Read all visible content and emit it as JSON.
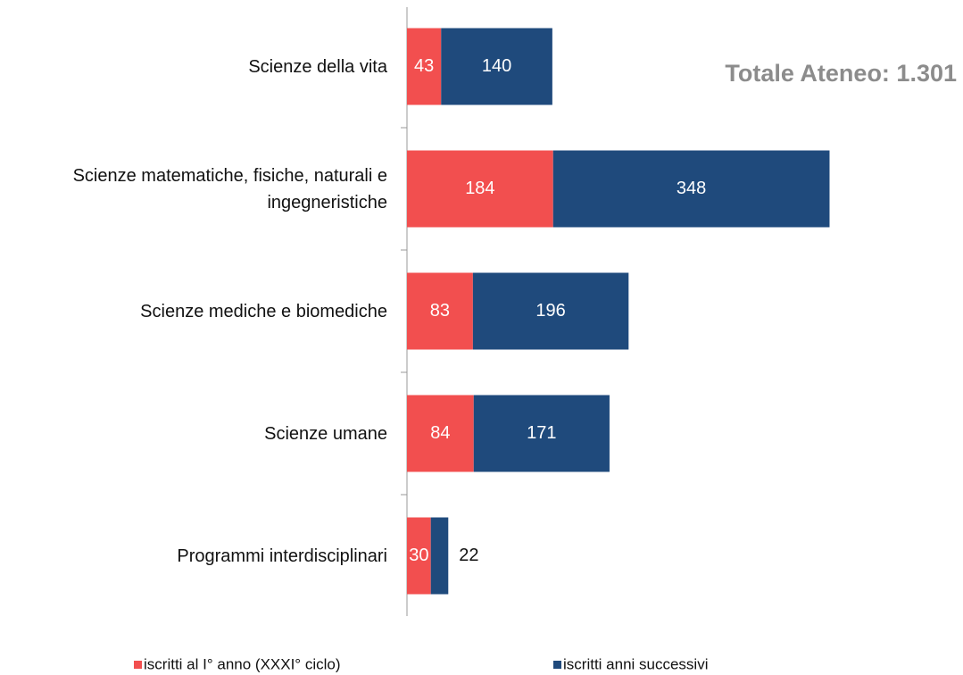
{
  "chart_data": {
    "type": "stacked_bar_horizontal",
    "annotation": "Totale Ateneo: 1.301",
    "categories": [
      "Scienze della vita",
      "Scienze matematiche, fisiche, naturali e ingegneristiche",
      "Scienze mediche e biomediche",
      "Scienze umane",
      "Programmi interdisciplinari"
    ],
    "series": [
      {
        "name": "iscritti al I° anno (XXXI° ciclo)",
        "color": "#f24f4f",
        "values": [
          43,
          184,
          83,
          84,
          30
        ]
      },
      {
        "name": "iscritti anni successivi",
        "color": "#1f4a7c",
        "values": [
          140,
          348,
          196,
          171,
          22
        ]
      }
    ]
  }
}
